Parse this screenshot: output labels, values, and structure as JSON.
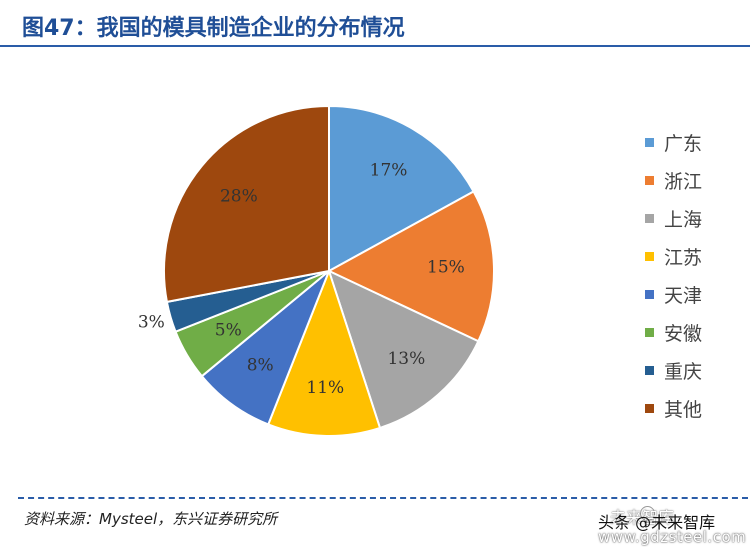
{
  "header": {
    "title": "图47：我国的模具制造企业的分布情况"
  },
  "chart_data": {
    "type": "pie",
    "categories": [
      "广东",
      "浙江",
      "上海",
      "江苏",
      "天津",
      "安徽",
      "重庆",
      "其他"
    ],
    "values": [
      17,
      15,
      13,
      11,
      8,
      5,
      3,
      28
    ],
    "data_labels": [
      "17%",
      "15%",
      "13%",
      "11%",
      "8%",
      "5%",
      "3%",
      "28%"
    ],
    "colors": [
      "#5b9bd5",
      "#ed7d31",
      "#a5a5a5",
      "#ffc000",
      "#4472c4",
      "#70ad47",
      "#255e91",
      "#9e480e"
    ],
    "start_angle_deg": 0,
    "direction": "clockwise",
    "legend_position": "right"
  },
  "footer": {
    "source": "资料来源：Mysteel，东兴证券研究所"
  },
  "watermark": {
    "brand": "未来智库",
    "line1": "头条 @未来智库",
    "line2": "www.gdzsteel.com"
  }
}
